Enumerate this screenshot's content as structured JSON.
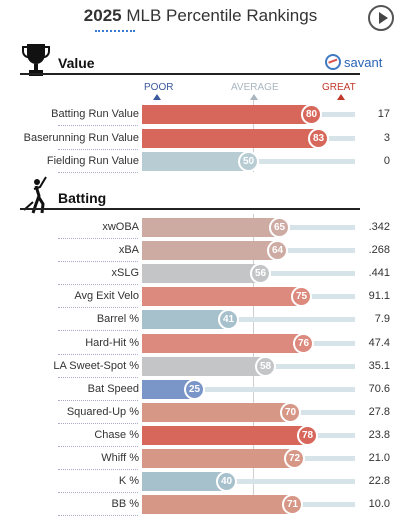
{
  "header": {
    "year": "2025",
    "title": "MLB Percentile Rankings"
  },
  "sections": {
    "value": {
      "title": "Value",
      "brand": "savant"
    },
    "batting": {
      "title": "Batting"
    }
  },
  "legend": {
    "poor": "POOR",
    "average": "AVERAGE",
    "great": "GREAT"
  },
  "value_rows": [
    {
      "label": "Batting Run Value",
      "percentile": 80,
      "value": "17",
      "color": "#d8675b"
    },
    {
      "label": "Baserunning Run Value",
      "percentile": 83,
      "value": "3",
      "color": "#d8675b"
    },
    {
      "label": "Fielding Run Value",
      "percentile": 50,
      "value": "0",
      "color": "#b7ccd3"
    }
  ],
  "batting_rows": [
    {
      "label": "xwOBA",
      "percentile": 65,
      "value": ".342",
      "color": "#cdaaa2"
    },
    {
      "label": "xBA",
      "percentile": 64,
      "value": ".268",
      "color": "#cdaaa2"
    },
    {
      "label": "xSLG",
      "percentile": 56,
      "value": ".441",
      "color": "#c3c5c7"
    },
    {
      "label": "Avg Exit Velo",
      "percentile": 75,
      "value": "91.1",
      "color": "#dc8a7d"
    },
    {
      "label": "Barrel %",
      "percentile": 41,
      "value": "7.9",
      "color": "#a7c1cc"
    },
    {
      "label": "Hard-Hit %",
      "percentile": 76,
      "value": "47.4",
      "color": "#dc8a7d"
    },
    {
      "label": "LA Sweet-Spot %",
      "percentile": 58,
      "value": "35.1",
      "color": "#c3c5c7"
    },
    {
      "label": "Bat Speed",
      "percentile": 25,
      "value": "70.6",
      "color": "#7a96c8"
    },
    {
      "label": "Squared-Up %",
      "percentile": 70,
      "value": "27.8",
      "color": "#d79786"
    },
    {
      "label": "Chase %",
      "percentile": 78,
      "value": "23.8",
      "color": "#d8675b"
    },
    {
      "label": "Whiff %",
      "percentile": 72,
      "value": "21.0",
      "color": "#d79786"
    },
    {
      "label": "K %",
      "percentile": 40,
      "value": "22.8",
      "color": "#a7c1cc"
    },
    {
      "label": "BB %",
      "percentile": 71,
      "value": "10.0",
      "color": "#d79786"
    }
  ]
}
